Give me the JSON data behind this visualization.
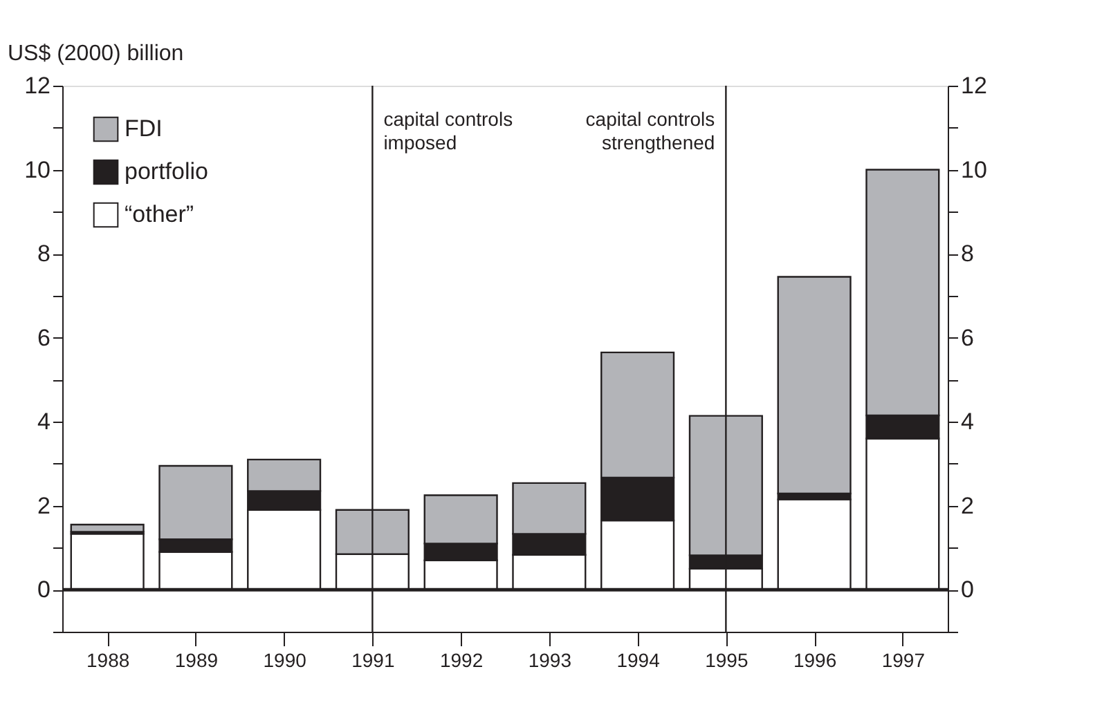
{
  "chart_data": {
    "type": "bar",
    "stacked": true,
    "ylabel": "US$ (2000) billion",
    "categories": [
      "1988",
      "1989",
      "1990",
      "1991",
      "1992",
      "1993",
      "1994",
      "1995",
      "1996",
      "1997"
    ],
    "series": [
      {
        "name": "“other”",
        "color": "#ffffff",
        "values": [
          1.33,
          0.9,
          1.9,
          0.85,
          0.7,
          0.83,
          1.65,
          0.5,
          2.15,
          3.6
        ]
      },
      {
        "name": "portfolio",
        "color": "#231f20",
        "values": [
          0.05,
          0.3,
          0.45,
          0.0,
          0.4,
          0.5,
          1.02,
          0.32,
          0.14,
          0.55
        ]
      },
      {
        "name": "FDI",
        "color": "#b3b4b8",
        "values": [
          0.17,
          1.75,
          0.75,
          1.05,
          1.15,
          1.21,
          2.98,
          3.32,
          5.16,
          5.85
        ]
      }
    ],
    "ylim": [
      -1,
      12
    ],
    "yticks": [
      {
        "value": -1,
        "label": null
      },
      0,
      {
        "value": 1,
        "label": null
      },
      2,
      {
        "value": 3,
        "label": null
      },
      4,
      {
        "value": 5,
        "label": null
      },
      6,
      {
        "value": 7,
        "label": null
      },
      8,
      {
        "value": 9,
        "label": null
      },
      10,
      {
        "value": 11,
        "label": null
      },
      12
    ],
    "y2lim": [
      -1,
      12
    ],
    "y2ticks": [
      {
        "value": -1,
        "label": null
      },
      0,
      {
        "value": 1,
        "label": null
      },
      2,
      {
        "value": 3,
        "label": null
      },
      4,
      {
        "value": 5,
        "label": null
      },
      6,
      {
        "value": 7,
        "label": null
      },
      8,
      {
        "value": 9,
        "label": null
      },
      10,
      {
        "value": 11,
        "label": null
      },
      12
    ],
    "ref_lines": [
      {
        "axis": "x",
        "value": "1991",
        "label": "capital controls\nimposed",
        "color": "#231f20"
      },
      {
        "axis": "x",
        "value": "1995",
        "label": "capital controls\nstrengthened",
        "color": "#231f20"
      },
      {
        "axis": "y2",
        "value": 0,
        "color": "#231f20"
      }
    ],
    "legend": "top left",
    "grid": false
  }
}
